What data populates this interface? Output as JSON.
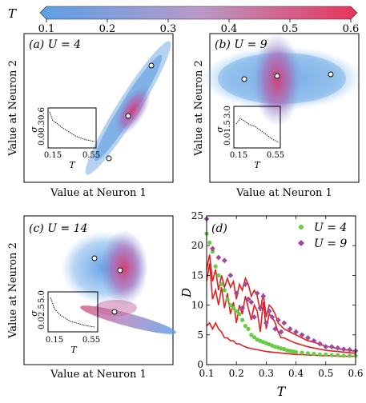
{
  "chart_data": [
    {
      "type": "colorbar",
      "label": "T",
      "range": [
        0.1,
        0.6
      ],
      "ticks": [
        "0.1",
        "0.2",
        "0.3",
        "0.4",
        "0.5",
        "0.6"
      ],
      "colors": {
        "low": "#5aa0e6",
        "mid": "#a896cc",
        "high": "#e8345a"
      }
    },
    {
      "type": "scatter",
      "panel": "(a)",
      "title": "U = 4",
      "xlabel": "Value at Neuron 1",
      "ylabel": "Value at Neuron 2",
      "markers": 3,
      "inset": {
        "type": "line",
        "ylabel": "σ",
        "xlabel": "T",
        "xticks": [
          "0.15",
          "0.55"
        ],
        "yticks": [
          "0.0",
          "0.3",
          "0.6"
        ]
      }
    },
    {
      "type": "scatter",
      "panel": "(b)",
      "title": "U = 9",
      "xlabel": "Value at Neuron 1",
      "ylabel": "Value at Neuron 2",
      "markers": 3,
      "inset": {
        "type": "line",
        "ylabel": "σ",
        "xlabel": "T",
        "xticks": [
          "0.15",
          "0.55"
        ],
        "yticks": [
          "0.0",
          "1.5",
          "3.0"
        ]
      }
    },
    {
      "type": "scatter",
      "panel": "(c)",
      "title": "U = 14",
      "xlabel": "Value at Neuron 1",
      "ylabel": "Value at Neuron 2",
      "markers": 3,
      "inset": {
        "type": "line",
        "ylabel": "σ",
        "xlabel": "T",
        "xticks": [
          "0.15",
          "0.55"
        ],
        "yticks": [
          "0.0",
          "2.5",
          "5.0"
        ]
      }
    },
    {
      "type": "scatter+line",
      "panel": "(d)",
      "xlabel": "T",
      "ylabel": "D",
      "xlim": [
        0.1,
        0.6
      ],
      "ylim": [
        0,
        25
      ],
      "xticks": [
        "0.1",
        "0.2",
        "0.3",
        "0.4",
        "0.5",
        "0.6"
      ],
      "yticks": [
        "0",
        "5",
        "10",
        "15",
        "20",
        "25"
      ],
      "legend_position": "top-right",
      "series": [
        {
          "name": "U = 4",
          "marker": "circle",
          "color": "#66cc44",
          "x": [
            0.1,
            0.11,
            0.12,
            0.13,
            0.14,
            0.15,
            0.16,
            0.17,
            0.18,
            0.19,
            0.2,
            0.21,
            0.22,
            0.23,
            0.24,
            0.25,
            0.26,
            0.27,
            0.28,
            0.29,
            0.3,
            0.31,
            0.32,
            0.33,
            0.34,
            0.35,
            0.36,
            0.37,
            0.38,
            0.39,
            0.4,
            0.42,
            0.44,
            0.46,
            0.48,
            0.5,
            0.52,
            0.54,
            0.56,
            0.58,
            0.6
          ],
          "y": [
            22,
            20.5,
            19,
            16.5,
            15,
            13.5,
            12.5,
            11,
            10,
            9.5,
            9,
            8.5,
            7.5,
            6.5,
            6,
            5,
            4.6,
            4.2,
            4,
            3.8,
            3.6,
            3.4,
            3.2,
            3.0,
            2.9,
            2.7,
            2.6,
            2.4,
            2.3,
            2.2,
            2.1,
            2.0,
            1.9,
            1.8,
            1.7,
            1.7,
            1.6,
            1.6,
            1.5,
            1.5,
            1.5
          ]
        },
        {
          "name": "U = 9",
          "marker": "diamond",
          "color": "#a04a9a",
          "x": [
            0.1,
            0.12,
            0.14,
            0.16,
            0.18,
            0.2,
            0.22,
            0.23,
            0.24,
            0.25,
            0.26,
            0.27,
            0.28,
            0.29,
            0.3,
            0.31,
            0.32,
            0.33,
            0.34,
            0.35,
            0.36,
            0.38,
            0.4,
            0.42,
            0.44,
            0.46,
            0.48,
            0.5,
            0.52,
            0.54,
            0.56,
            0.58,
            0.6
          ],
          "y": [
            24.5,
            19.5,
            18,
            17.5,
            15,
            12,
            9.5,
            13.5,
            11,
            10.5,
            8,
            12,
            9.5,
            11.5,
            7,
            9,
            8,
            6,
            7.5,
            5.5,
            7,
            6,
            5.5,
            5,
            4.5,
            4,
            3.5,
            3,
            3,
            2.8,
            2.6,
            2.5,
            2.3
          ]
        }
      ],
      "lines": [
        {
          "color": "#e02020",
          "x": [
            0.1,
            0.11,
            0.12,
            0.13,
            0.14,
            0.15,
            0.16,
            0.17,
            0.18,
            0.19,
            0.2,
            0.21,
            0.22,
            0.23,
            0.24,
            0.25,
            0.26,
            0.27,
            0.28,
            0.29,
            0.3,
            0.31,
            0.32,
            0.33,
            0.34,
            0.35,
            0.36,
            0.38,
            0.4,
            0.42,
            0.44,
            0.46,
            0.48,
            0.5,
            0.52,
            0.54,
            0.56,
            0.58,
            0.6
          ],
          "y": [
            16,
            18.5,
            14,
            16,
            12.5,
            15,
            13,
            14.5,
            13,
            14,
            11,
            13.5,
            12.5,
            14.5,
            13.5,
            11.5,
            12.5,
            11.5,
            9,
            12,
            8,
            10,
            9.5,
            8.5,
            7,
            6.5,
            6,
            5.5,
            5,
            4.5,
            4,
            3.8,
            3.4,
            3.1,
            2.9,
            2.7,
            2.5,
            2.4,
            2.2
          ]
        },
        {
          "color": "#e02020",
          "x": [
            0.1,
            0.11,
            0.12,
            0.13,
            0.14,
            0.15,
            0.16,
            0.17,
            0.18,
            0.19,
            0.2,
            0.21,
            0.22,
            0.23,
            0.24,
            0.25,
            0.26,
            0.27,
            0.28,
            0.29,
            0.3,
            0.31,
            0.32,
            0.33,
            0.34,
            0.35,
            0.36,
            0.38,
            0.4,
            0.42,
            0.44,
            0.46,
            0.48,
            0.5,
            0.52,
            0.54,
            0.56,
            0.58,
            0.6
          ],
          "y": [
            14,
            17,
            11,
            12.5,
            10,
            13,
            9.5,
            12,
            8.5,
            10.5,
            7,
            10,
            8.5,
            11.5,
            9.5,
            7.5,
            10,
            9,
            5.5,
            10.5,
            6,
            8.5,
            8,
            7,
            5.5,
            4.5,
            4.5,
            4,
            3.6,
            3.3,
            3,
            2.8,
            2.6,
            2.4,
            2.3,
            2.2,
            2.1,
            2.0,
            1.9
          ]
        },
        {
          "color": "#e02020",
          "x": [
            0.1,
            0.11,
            0.12,
            0.13,
            0.14,
            0.15,
            0.16,
            0.17,
            0.18,
            0.19,
            0.2,
            0.21,
            0.22,
            0.23,
            0.24,
            0.25,
            0.26,
            0.27,
            0.28,
            0.29,
            0.3,
            0.32,
            0.34,
            0.36,
            0.38,
            0.4,
            0.42,
            0.44,
            0.46,
            0.48,
            0.5,
            0.52,
            0.54,
            0.56,
            0.58,
            0.6
          ],
          "y": [
            6.5,
            7,
            6,
            7,
            6,
            5.5,
            4.5,
            4.5,
            4,
            4,
            3.5,
            3.5,
            3.2,
            3,
            2.8,
            2.7,
            2.6,
            2.5,
            2.4,
            2.3,
            2.2,
            2.1,
            2.0,
            1.9,
            1.8,
            1.7,
            1.7,
            1.6,
            1.6,
            1.5,
            1.5,
            1.5,
            1.4,
            1.4,
            1.4,
            1.4
          ]
        }
      ]
    }
  ]
}
